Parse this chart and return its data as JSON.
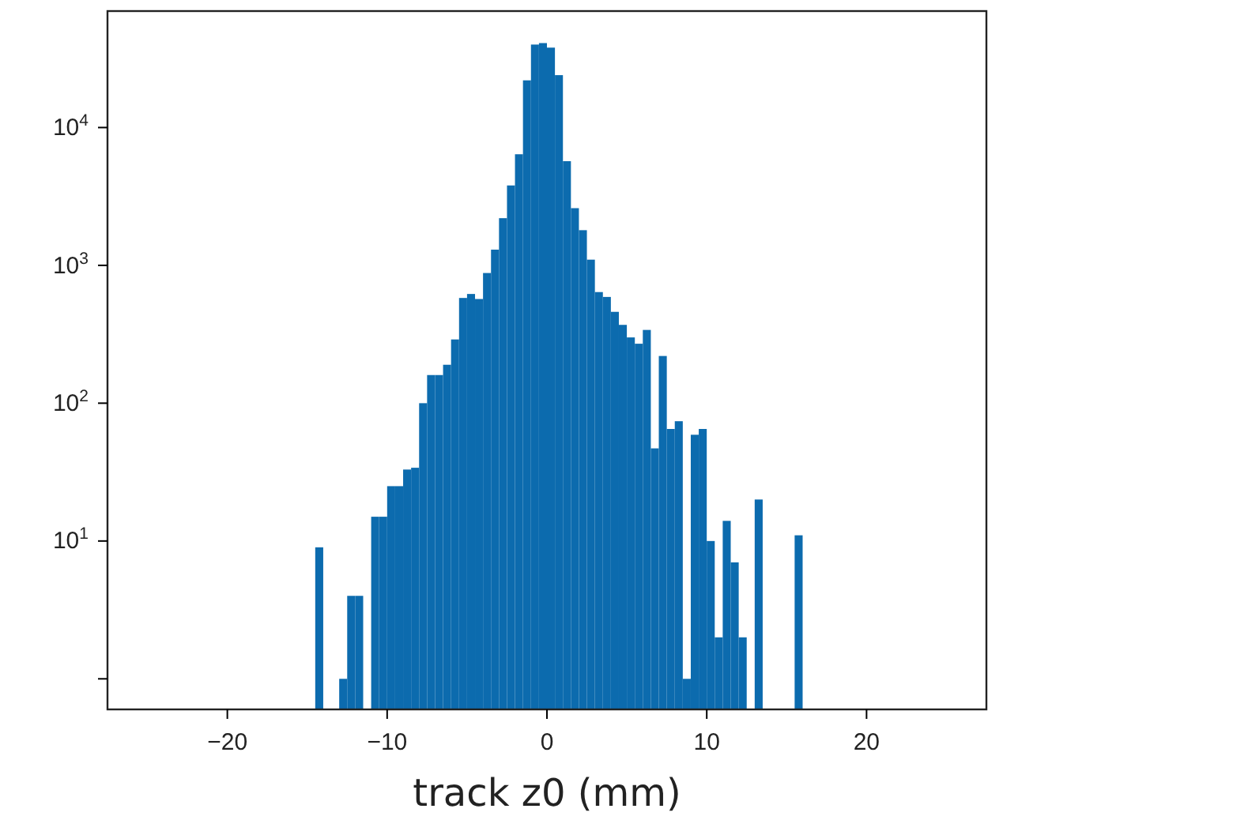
{
  "chart_data": {
    "type": "histogram",
    "xlabel": "track z0 (mm)",
    "color": "#0c6bae",
    "log": "y",
    "bins": [
      -14.5,
      -14,
      -13.5,
      -13,
      -12.5,
      -12,
      -11.5,
      -11,
      -10.5,
      -10,
      -9.5,
      -9,
      -8.5,
      -8,
      -7.5,
      -7,
      -6.5,
      -6,
      -5.5,
      -5,
      -4.5,
      -4,
      -3.5,
      -3,
      -2.5,
      -2,
      -1.5,
      -1,
      -0.5,
      0,
      0.5,
      1,
      1.5,
      2,
      2.5,
      3,
      3.5,
      4,
      4.5,
      5,
      5.5,
      6,
      6.5,
      7,
      7.5,
      8,
      8.5,
      9,
      9.5,
      10,
      10.5,
      11,
      11.5,
      12,
      12.5,
      13,
      13.5,
      14,
      14.5,
      15,
      15.5,
      16
    ],
    "values": [
      9,
      null,
      null,
      1,
      4,
      4,
      null,
      15,
      15,
      25,
      25,
      33,
      34,
      100,
      160,
      160,
      190,
      290,
      580,
      620,
      570,
      880,
      1300,
      2200,
      3800,
      6400,
      22000,
      40000,
      41000,
      38000,
      24000,
      5700,
      2600,
      1800,
      1100,
      640,
      590,
      460,
      370,
      300,
      270,
      340,
      47,
      220,
      65,
      74,
      1,
      59,
      65,
      10,
      2,
      14,
      7,
      2,
      null,
      20,
      null,
      null,
      null,
      null,
      11
    ],
    "xlim": [
      -27.5,
      27.5
    ],
    "xticks": [
      {
        "value": -20,
        "label": "−20"
      },
      {
        "value": -10,
        "label": "−10"
      },
      0,
      10,
      20
    ],
    "ylim": [
      0.6,
      70000
    ],
    "yticks": [
      {
        "value": 1,
        "label": null
      },
      {
        "value": 10,
        "label": "10$^{1}$"
      },
      {
        "value": 100,
        "label": "10$^{2}$"
      },
      {
        "value": 1000,
        "label": "10$^{3}$"
      },
      {
        "value": 10000,
        "label": "10$^{4}$"
      }
    ]
  }
}
